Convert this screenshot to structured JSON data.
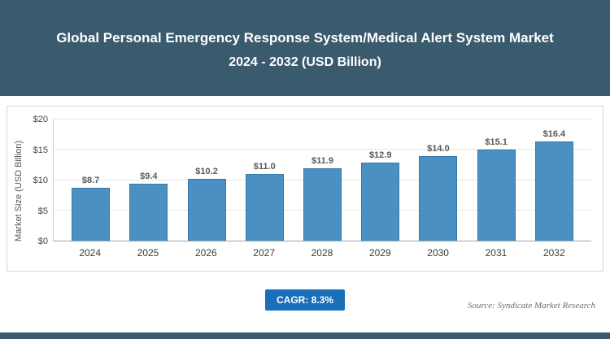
{
  "header": {
    "title": "Global Personal Emergency Response System/Medical Alert System Market",
    "subtitle": "2024 - 2032 (USD Billion)"
  },
  "chart_data": {
    "type": "bar",
    "title": "Global Personal Emergency Response System/Medical Alert System Market 2024 - 2032 (USD Billion)",
    "categories": [
      "2024",
      "2025",
      "2026",
      "2027",
      "2028",
      "2029",
      "2030",
      "2031",
      "2032"
    ],
    "values": [
      8.7,
      9.4,
      10.2,
      11.0,
      11.9,
      12.9,
      14.0,
      15.1,
      16.4
    ],
    "labels": [
      "$8.7",
      "$9.4",
      "$10.2",
      "$11.0",
      "$11.9",
      "$12.9",
      "$14.0",
      "$15.1",
      "$16.4"
    ],
    "xlabel": "",
    "ylabel": "Market Size (USD Billion)",
    "yticks": [
      "$0",
      "$5",
      "$10",
      "$15",
      "$20"
    ],
    "ylim": [
      0,
      20
    ],
    "grid": "horizontal",
    "legend": "none"
  },
  "footer": {
    "cagr_label": "CAGR: 8.3%",
    "source": "Source: Syndicate Market Research"
  },
  "colors": {
    "header_bg": "#3a5a6d",
    "bar_fill": "#4a90c2",
    "bar_edge": "#3878a6",
    "badge_bg": "#1a6fba"
  }
}
